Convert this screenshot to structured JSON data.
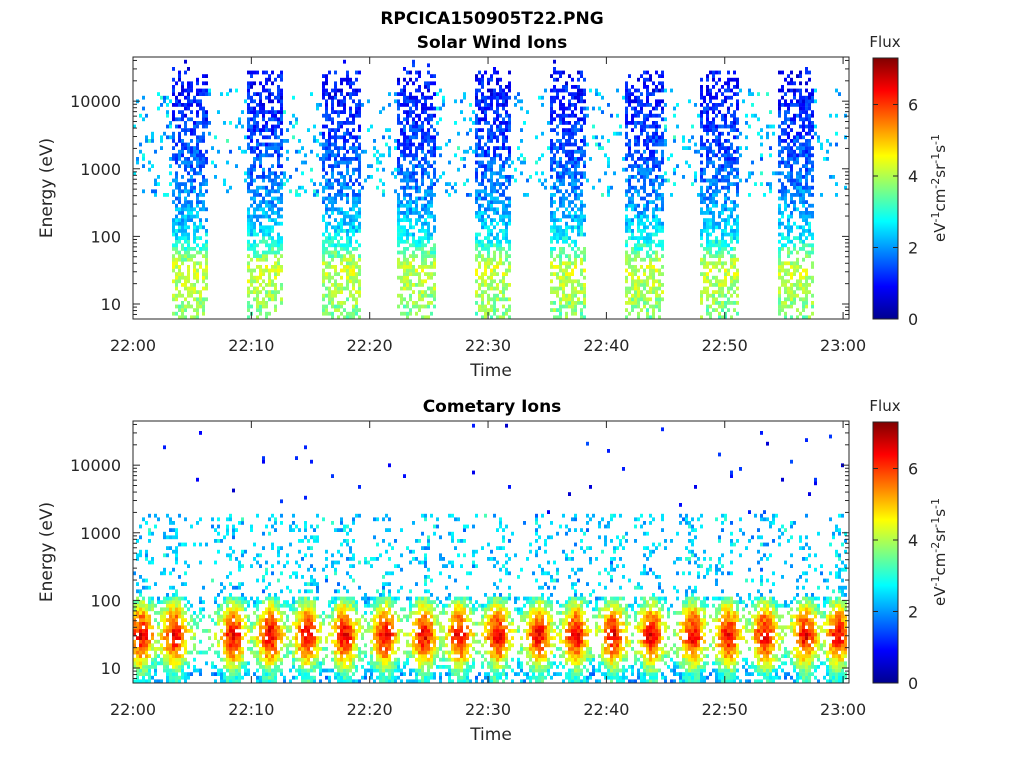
{
  "figure": {
    "title": "RPCICA150905T22.PNG"
  },
  "chart_data": [
    {
      "type": "heatmap",
      "title": "Solar Wind Ions",
      "xlabel": "Time",
      "ylabel": "Energy (eV)",
      "x_ticks": [
        "22:00",
        "22:10",
        "22:20",
        "22:30",
        "22:40",
        "22:50",
        "23:00"
      ],
      "y_scale": "log",
      "y_ticks": [
        10,
        100,
        1000,
        10000
      ],
      "y_tick_labels": [
        "10",
        "100",
        "1000",
        "10000"
      ],
      "ylim": [
        6,
        45000
      ],
      "xlim_minutes": [
        0,
        60.5
      ],
      "colorbar": {
        "label": "Flux",
        "unit": "eV-1cm-2sr-1s-1",
        "range": [
          0,
          7.3
        ],
        "ticks": [
          0,
          2,
          4,
          6
        ],
        "colormap": "jet"
      },
      "grid": false,
      "sweep_bursts_minutes": [
        [
          3.2,
          6.3
        ],
        [
          9.6,
          12.8
        ],
        [
          16.0,
          19.2
        ],
        [
          22.4,
          25.6
        ],
        [
          28.8,
          32.0
        ],
        [
          35.2,
          38.4
        ],
        [
          41.6,
          44.8
        ],
        [
          48.0,
          51.2
        ],
        [
          54.4,
          57.6
        ]
      ],
      "energy_profile": [
        {
          "energy_eV": 7,
          "flux": 3.6
        },
        {
          "energy_eV": 15,
          "flux": 3.9
        },
        {
          "energy_eV": 35,
          "flux": 4.2
        },
        {
          "energy_eV": 100,
          "flux": 2.6
        },
        {
          "energy_eV": 400,
          "flux": 1.9
        },
        {
          "energy_eV": 1500,
          "flux": 1.5
        },
        {
          "energy_eV": 6000,
          "flux": 1.2
        },
        {
          "energy_eV": 15000,
          "flux": 1.0
        }
      ]
    },
    {
      "type": "heatmap",
      "title": "Cometary Ions",
      "xlabel": "Time",
      "ylabel": "Energy (eV)",
      "x_ticks": [
        "22:00",
        "22:10",
        "22:20",
        "22:30",
        "22:40",
        "22:50",
        "23:00"
      ],
      "y_scale": "log",
      "y_ticks": [
        10,
        100,
        1000,
        10000
      ],
      "y_tick_labels": [
        "10",
        "100",
        "1000",
        "10000"
      ],
      "ylim": [
        6,
        45000
      ],
      "xlim_minutes": [
        0,
        60.5
      ],
      "colorbar": {
        "label": "Flux",
        "unit": "eV-1cm-2sr-1s-1",
        "range": [
          0,
          7.3
        ],
        "ticks": [
          0,
          2,
          4,
          6
        ],
        "colormap": "jet"
      },
      "grid": false,
      "peak_times_minutes": [
        0.7,
        3.5,
        8.5,
        11.6,
        14.7,
        17.9,
        21.3,
        24.6,
        27.6,
        30.8,
        34.3,
        37.4,
        40.6,
        43.8,
        47.3,
        50.3,
        53.4,
        56.8,
        59.6
      ],
      "energy_profile": [
        {
          "energy_eV": 8,
          "flux": 3.2
        },
        {
          "energy_eV": 15,
          "flux": 5.2
        },
        {
          "energy_eV": 30,
          "flux": 6.6
        },
        {
          "energy_eV": 60,
          "flux": 5.4
        },
        {
          "energy_eV": 120,
          "flux": 3.2
        },
        {
          "energy_eV": 500,
          "flux": 2.3
        },
        {
          "energy_eV": 2000,
          "flux": 1.8
        },
        {
          "energy_eV": 10000,
          "flux": 1.0
        }
      ]
    }
  ]
}
